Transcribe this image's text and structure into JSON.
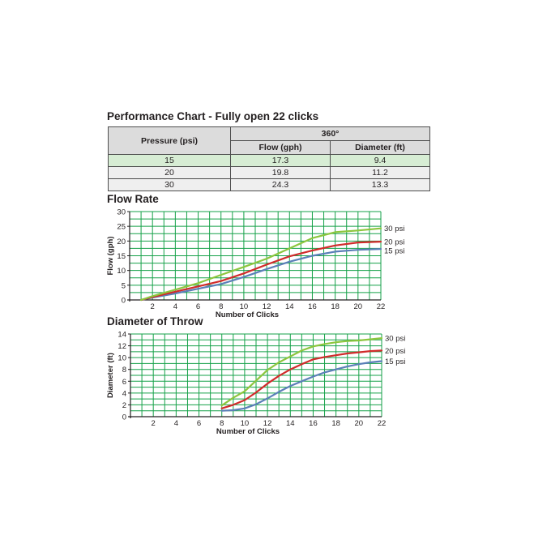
{
  "page_title": "Performance Chart - Fully open 22 clicks",
  "table": {
    "col_pressure": "Pressure (psi)",
    "col_group": "360°",
    "col_flow": "Flow (gph)",
    "col_diameter": "Diameter (ft)",
    "rows": [
      {
        "pressure": "15",
        "flow": "17.3",
        "diameter": "9.4"
      },
      {
        "pressure": "20",
        "flow": "19.8",
        "diameter": "11.2"
      },
      {
        "pressure": "30",
        "flow": "24.3",
        "diameter": "13.3"
      }
    ]
  },
  "colors": {
    "grid": "#15a148",
    "s15": "#5b7fb8",
    "s20": "#d12b2b",
    "s30": "#8cc63e"
  },
  "chart_data": [
    {
      "type": "line",
      "title": "Flow Rate",
      "xlabel": "Number of Clicks",
      "ylabel": "Flow (gph)",
      "xlim": [
        0,
        22
      ],
      "ylim": [
        0,
        30
      ],
      "xticks": [
        2,
        4,
        6,
        8,
        10,
        12,
        14,
        16,
        18,
        20,
        22
      ],
      "yticks": [
        0,
        5,
        10,
        15,
        20,
        25,
        30
      ],
      "grid": true,
      "legend": "right end of lines",
      "series": [
        {
          "name": "15 psi",
          "color": "#5b7fb8",
          "points": [
            [
              1,
              0
            ],
            [
              2,
              0.8
            ],
            [
              4,
              2.2
            ],
            [
              6,
              3.8
            ],
            [
              8,
              5.4
            ],
            [
              10,
              7.8
            ],
            [
              12,
              10.5
            ],
            [
              14,
              13
            ],
            [
              16,
              15
            ],
            [
              18,
              16.4
            ],
            [
              20,
              17
            ],
            [
              22,
              17.3
            ]
          ]
        },
        {
          "name": "20 psi",
          "color": "#d12b2b",
          "points": [
            [
              1,
              0
            ],
            [
              2,
              1
            ],
            [
              4,
              2.8
            ],
            [
              6,
              4.6
            ],
            [
              8,
              6.4
            ],
            [
              10,
              9
            ],
            [
              12,
              12
            ],
            [
              14,
              14.8
            ],
            [
              16,
              16.8
            ],
            [
              18,
              18.5
            ],
            [
              20,
              19.5
            ],
            [
              22,
              19.8
            ]
          ]
        },
        {
          "name": "30 psi",
          "color": "#8cc63e",
          "points": [
            [
              1,
              0
            ],
            [
              2,
              1.3
            ],
            [
              4,
              3.5
            ],
            [
              6,
              5.7
            ],
            [
              8,
              8.5
            ],
            [
              10,
              11.2
            ],
            [
              12,
              14
            ],
            [
              14,
              17.5
            ],
            [
              16,
              21
            ],
            [
              18,
              23
            ],
            [
              20,
              23.6
            ],
            [
              22,
              24.3
            ]
          ]
        }
      ]
    },
    {
      "type": "line",
      "title": "Diameter of Throw",
      "xlabel": "Number of Clicks",
      "ylabel": "Diameter (ft)",
      "xlim": [
        0,
        22
      ],
      "ylim": [
        0,
        14
      ],
      "xticks": [
        2,
        4,
        6,
        8,
        10,
        12,
        14,
        16,
        18,
        20,
        22
      ],
      "yticks": [
        0,
        2,
        4,
        6,
        8,
        10,
        12,
        14
      ],
      "grid": true,
      "legend": "right end of lines",
      "series": [
        {
          "name": "15 psi",
          "color": "#5b7fb8",
          "points": [
            [
              8,
              1
            ],
            [
              9,
              1.1
            ],
            [
              10,
              1.4
            ],
            [
              11,
              2.1
            ],
            [
              12,
              3.1
            ],
            [
              13,
              4.2
            ],
            [
              14,
              5.2
            ],
            [
              15,
              6
            ],
            [
              16,
              6.8
            ],
            [
              17,
              7.5
            ],
            [
              18,
              8
            ],
            [
              19,
              8.5
            ],
            [
              20,
              8.9
            ],
            [
              21,
              9.2
            ],
            [
              22,
              9.4
            ]
          ]
        },
        {
          "name": "20 psi",
          "color": "#d12b2b",
          "points": [
            [
              8,
              1.4
            ],
            [
              9,
              2
            ],
            [
              10,
              2.8
            ],
            [
              11,
              4.1
            ],
            [
              12,
              5.6
            ],
            [
              13,
              6.9
            ],
            [
              14,
              8
            ],
            [
              15,
              8.9
            ],
            [
              16,
              9.7
            ],
            [
              17,
              10.1
            ],
            [
              18,
              10.4
            ],
            [
              19,
              10.7
            ],
            [
              20,
              10.9
            ],
            [
              21,
              11.1
            ],
            [
              22,
              11.2
            ]
          ]
        },
        {
          "name": "30 psi",
          "color": "#8cc63e",
          "points": [
            [
              8,
              1.9
            ],
            [
              9,
              3.2
            ],
            [
              10,
              4.3
            ],
            [
              11,
              6.1
            ],
            [
              12,
              7.9
            ],
            [
              13,
              9.2
            ],
            [
              14,
              10.2
            ],
            [
              15,
              11.2
            ],
            [
              16,
              11.9
            ],
            [
              17,
              12.3
            ],
            [
              18,
              12.6
            ],
            [
              19,
              12.8
            ],
            [
              20,
              12.9
            ],
            [
              21,
              13.1
            ],
            [
              22,
              13.3
            ]
          ]
        }
      ]
    }
  ]
}
